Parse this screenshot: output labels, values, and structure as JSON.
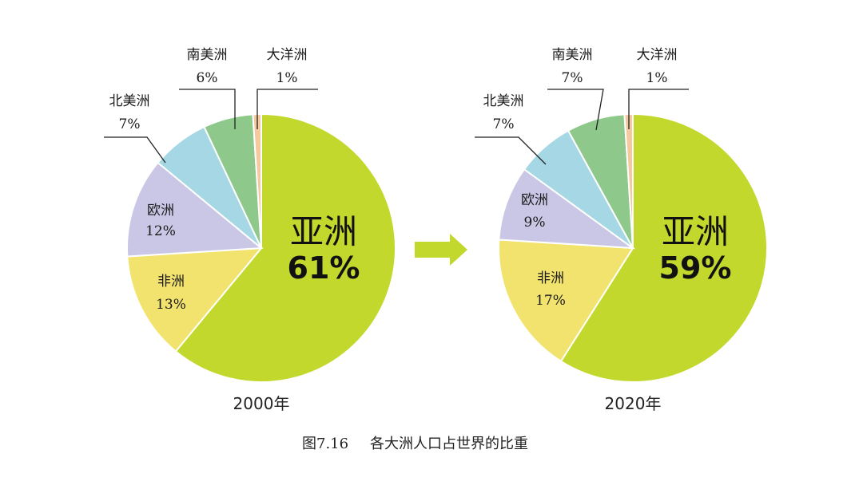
{
  "chart_data": [
    {
      "type": "pie",
      "title": "2000年",
      "slices": [
        {
          "name": "亚洲",
          "value": 61,
          "label": "61%",
          "color": "#c3d82c"
        },
        {
          "name": "非洲",
          "value": 13,
          "label": "13%",
          "color": "#f2e36e"
        },
        {
          "name": "欧洲",
          "value": 12,
          "label": "12%",
          "color": "#c9c7e5"
        },
        {
          "name": "北美洲",
          "value": 7,
          "label": "7%",
          "color": "#a5d8e4"
        },
        {
          "name": "南美洲",
          "value": 6,
          "label": "6%",
          "color": "#8ec98b"
        },
        {
          "name": "大洋洲",
          "value": 1,
          "label": "1%",
          "color": "#f5c9a0"
        }
      ]
    },
    {
      "type": "pie",
      "title": "2020年",
      "slices": [
        {
          "name": "亚洲",
          "value": 59,
          "label": "59%",
          "color": "#c3d82c"
        },
        {
          "name": "非洲",
          "value": 17,
          "label": "17%",
          "color": "#f2e36e"
        },
        {
          "name": "欧洲",
          "value": 9,
          "label": "9%",
          "color": "#c9c7e5"
        },
        {
          "name": "北美洲",
          "value": 7,
          "label": "7%",
          "color": "#a5d8e4"
        },
        {
          "name": "南美洲",
          "value": 7,
          "label": "7%",
          "color": "#8ec98b"
        },
        {
          "name": "大洋洲",
          "value": 1,
          "label": "1%",
          "color": "#f5c9a0"
        }
      ]
    }
  ],
  "caption": {
    "figure_number": "图7.16",
    "text": "各大洲人口占世界的比重"
  },
  "arrow": {
    "color": "#c3d82c",
    "icon": "right-arrow-icon"
  }
}
